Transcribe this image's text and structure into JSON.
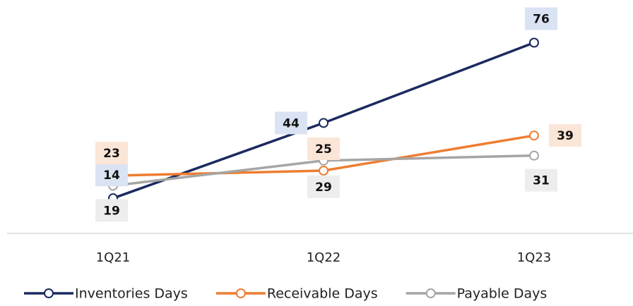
{
  "chart_data": {
    "type": "line",
    "categories": [
      "1Q21",
      "1Q22",
      "1Q23"
    ],
    "series": [
      {
        "name": "Inventories Days",
        "color": "#1b2a5e",
        "label_bg": "#dae3f3",
        "values": [
          14,
          44,
          76
        ]
      },
      {
        "name": "Receivable Days",
        "color": "#ed7d31",
        "label_bg": "#fbe5d6",
        "values": [
          23,
          25,
          39
        ]
      },
      {
        "name": "Payable Days",
        "color": "#a5a5a5",
        "label_bg": "#ededed",
        "values": [
          19,
          29,
          31
        ]
      }
    ],
    "ylim": [
      0,
      93
    ]
  }
}
